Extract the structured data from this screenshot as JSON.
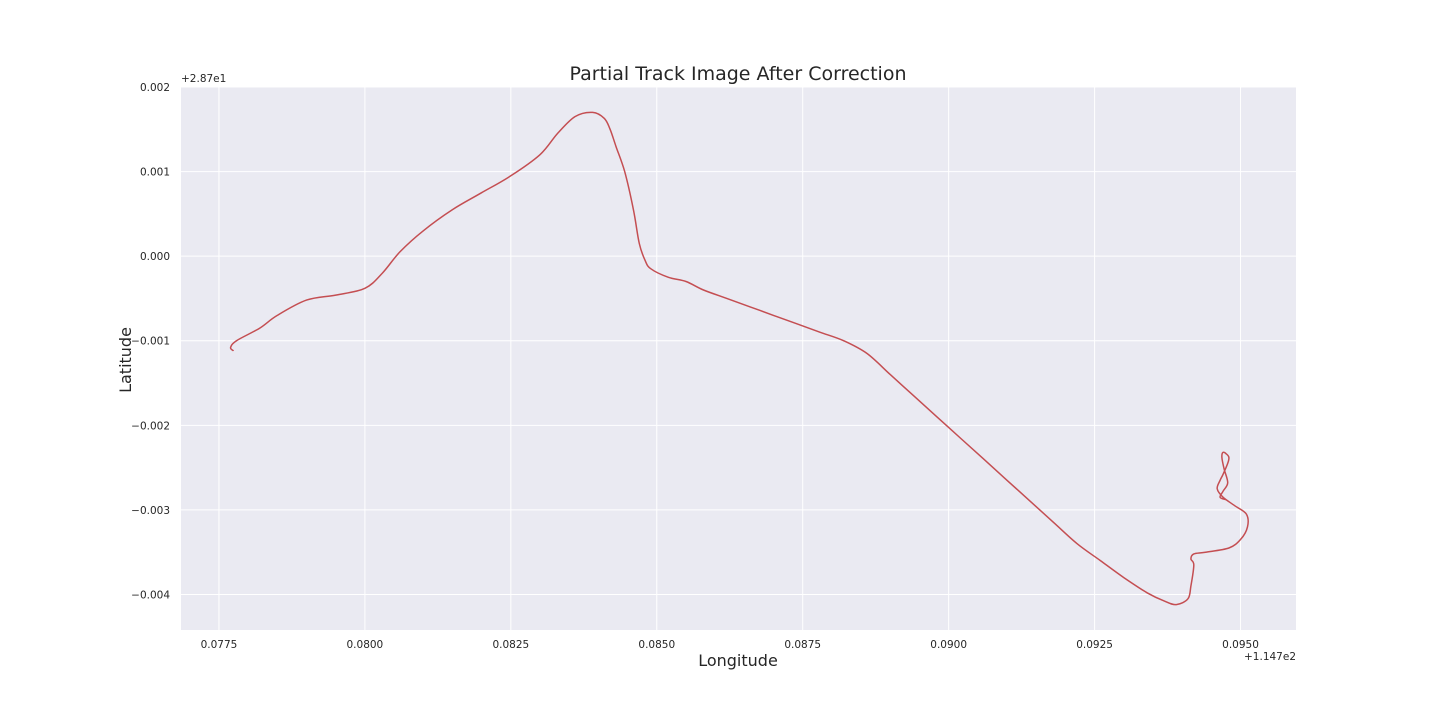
{
  "chart_data": {
    "type": "line",
    "title": "Partial Track Image After Correction",
    "xlabel": "Longitude",
    "ylabel": "Latitude",
    "x_offset_label": "+1.147e2",
    "y_offset_label": "+2.87e1",
    "xlim": [
      0.07685,
      0.09595
    ],
    "ylim": [
      -0.00442,
      0.002
    ],
    "x_ticks": [
      0.0775,
      0.08,
      0.0825,
      0.085,
      0.0875,
      0.09,
      0.0925,
      0.095
    ],
    "x_tick_labels": [
      "0.0775",
      "0.0800",
      "0.0825",
      "0.0850",
      "0.0875",
      "0.0900",
      "0.0925",
      "0.0950"
    ],
    "y_ticks": [
      0.002,
      0.001,
      0.0,
      -0.001,
      -0.002,
      -0.003,
      -0.004
    ],
    "y_tick_labels": [
      "0.002",
      "0.001",
      "0.000",
      "−0.001",
      "−0.002",
      "−0.003",
      "−0.004"
    ],
    "grid": true,
    "background_color": "#eaeaf2",
    "grid_color": "#ffffff",
    "series": [
      {
        "color": "#c44e52",
        "x": [
          0.07775,
          0.0777,
          0.0778,
          0.0782,
          0.0785,
          0.079,
          0.0795,
          0.08,
          0.0803,
          0.0806,
          0.081,
          0.0815,
          0.082,
          0.0825,
          0.083,
          0.0833,
          0.0836,
          0.0839,
          0.0841,
          0.0842,
          0.0843,
          0.08445,
          0.0846,
          0.0847,
          0.0848,
          0.0849,
          0.0852,
          0.0855,
          0.0858,
          0.0862,
          0.0866,
          0.087,
          0.0874,
          0.0878,
          0.0882,
          0.0886,
          0.089,
          0.0894,
          0.0898,
          0.0902,
          0.0906,
          0.091,
          0.0914,
          0.0918,
          0.0922,
          0.0926,
          0.093,
          0.0934,
          0.0937,
          0.0939,
          0.0941,
          0.09415,
          0.0942,
          0.09415,
          0.0942,
          0.0944,
          0.0948,
          0.095,
          0.09512,
          0.0951,
          0.0949,
          0.0947,
          0.0946,
          0.09465,
          0.0947,
          0.09478,
          0.0948,
          0.09476,
          0.0947,
          0.09468,
          0.09472,
          0.09478,
          0.0947,
          0.09465,
          0.09475
        ],
        "y": [
          -0.00112,
          -0.00108,
          -0.001,
          -0.00085,
          -0.0007,
          -0.00052,
          -0.00046,
          -0.00038,
          -0.0002,
          5e-05,
          0.0003,
          0.00055,
          0.00075,
          0.00095,
          0.0012,
          0.00145,
          0.00165,
          0.0017,
          0.00163,
          0.0015,
          0.0013,
          0.001,
          0.00055,
          0.00015,
          -5e-05,
          -0.00015,
          -0.00025,
          -0.0003,
          -0.0004,
          -0.0005,
          -0.0006,
          -0.0007,
          -0.0008,
          -0.0009,
          -0.001,
          -0.00115,
          -0.0014,
          -0.00165,
          -0.0019,
          -0.00215,
          -0.0024,
          -0.00265,
          -0.0029,
          -0.00315,
          -0.0034,
          -0.0036,
          -0.0038,
          -0.00398,
          -0.00408,
          -0.00412,
          -0.00405,
          -0.0039,
          -0.00365,
          -0.00358,
          -0.00352,
          -0.0035,
          -0.00345,
          -0.00335,
          -0.0032,
          -0.00305,
          -0.00295,
          -0.00285,
          -0.00275,
          -0.00265,
          -0.00258,
          -0.00245,
          -0.00238,
          -0.00234,
          -0.00232,
          -0.00238,
          -0.00252,
          -0.00268,
          -0.00278,
          -0.00285,
          -0.00288
        ]
      }
    ]
  }
}
